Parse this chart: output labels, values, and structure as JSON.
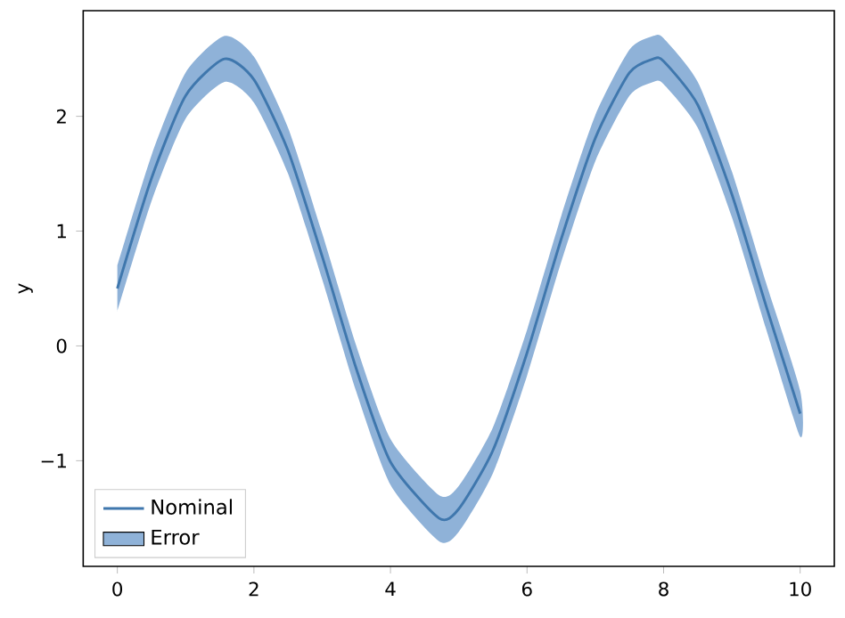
{
  "chart_data": {
    "type": "line",
    "ylabel": "y",
    "x": [
      0,
      0.5,
      1,
      1.57,
      2,
      2.5,
      3,
      3.5,
      4,
      4.71,
      5,
      5.5,
      6,
      6.5,
      7,
      7.5,
      7.85,
      8,
      8.5,
      9,
      9.5,
      10
    ],
    "series": [
      {
        "name": "Nominal",
        "color": "#3f77ad",
        "values": [
          0.5,
          1.46,
          2.18,
          2.5,
          2.32,
          1.7,
          0.78,
          -0.2,
          -1.01,
          -1.5,
          -1.42,
          -0.91,
          -0.06,
          0.93,
          1.81,
          2.38,
          2.5,
          2.48,
          2.1,
          1.32,
          0.35,
          -0.59
        ]
      },
      {
        "name": "Error",
        "type": "area",
        "color": "#8fb2d8",
        "values": [
          null,
          null,
          null,
          null,
          null,
          null,
          null,
          null,
          null,
          null,
          null,
          null,
          null,
          null,
          null,
          null,
          null,
          null,
          null,
          null,
          null,
          null
        ],
        "lower": [
          0.3,
          1.26,
          1.98,
          2.3,
          2.12,
          1.5,
          0.58,
          -0.4,
          -1.21,
          -1.7,
          -1.62,
          -1.11,
          -0.26,
          0.73,
          1.61,
          2.18,
          2.3,
          2.28,
          1.9,
          1.12,
          0.15,
          -0.79
        ],
        "upper": [
          0.7,
          1.66,
          2.38,
          2.7,
          2.52,
          1.9,
          0.98,
          0.0,
          -0.81,
          -1.3,
          -1.22,
          -0.71,
          0.14,
          1.13,
          2.01,
          2.58,
          2.7,
          2.68,
          2.3,
          1.52,
          0.55,
          -0.39
        ]
      }
    ],
    "xlim": [
      -0.5,
      10.5
    ],
    "ylim": [
      -1.92,
      2.92
    ],
    "xticks": [
      0,
      2,
      4,
      6,
      8,
      10
    ],
    "yticks": [
      {
        "value": -1,
        "label": "−1"
      },
      0,
      1,
      2
    ],
    "legend": "bottom left",
    "grid": false
  }
}
